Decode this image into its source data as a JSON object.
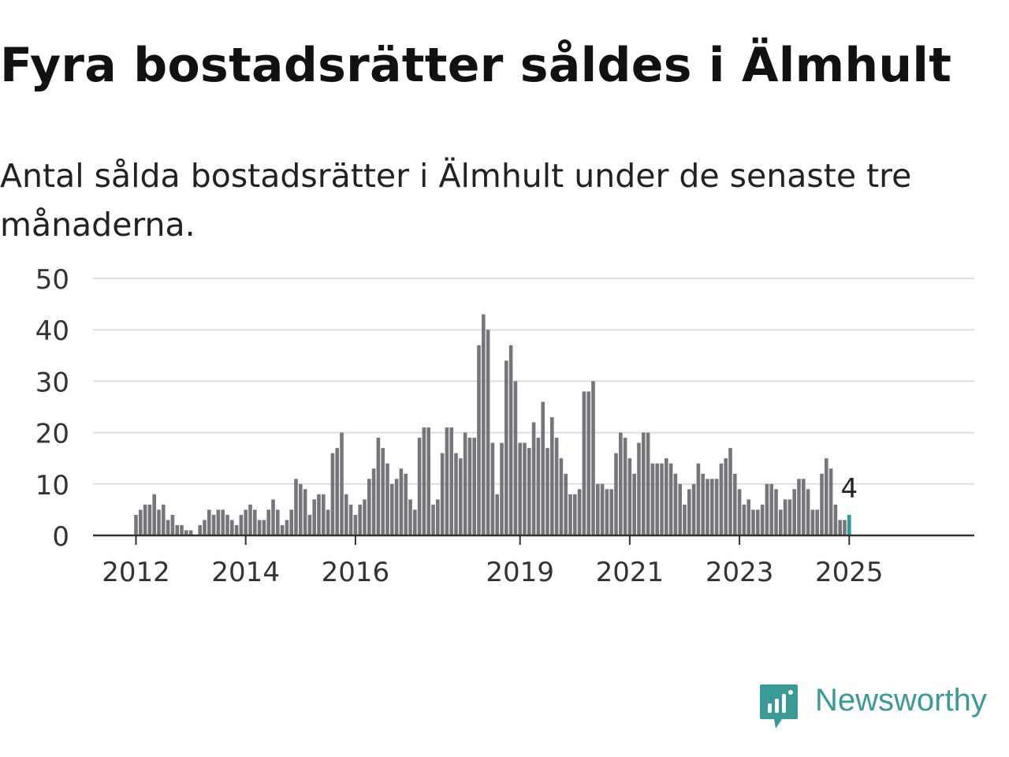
{
  "title": "Fyra bostadsrätter såldes i Älmhult",
  "subtitle": "Antal sålda bostadsrätter i Älmhult under de senaste tre månaderna.",
  "brand": {
    "name": "Newsworthy",
    "icon": "newsworthy-logo-icon",
    "color": "#3a9a96"
  },
  "colors": {
    "bar": "#76757c",
    "highlight": "#2a9d98",
    "grid": "#dddddd",
    "axis": "#333333"
  },
  "chart_data": {
    "type": "bar",
    "title": "",
    "xlabel": "",
    "ylabel": "",
    "ylim": [
      0,
      50
    ],
    "yticks": [
      0,
      10,
      20,
      30,
      40,
      50
    ],
    "xticks": [
      "2012",
      "2014",
      "2016",
      "2019",
      "2021",
      "2023",
      "2025"
    ],
    "grid": true,
    "x_start": "2012-01",
    "x_end": "2025-01",
    "values": [
      4,
      5,
      6,
      6,
      8,
      5,
      6,
      3,
      4,
      2,
      2,
      1,
      1,
      0,
      2,
      3,
      5,
      4,
      5,
      5,
      4,
      3,
      2,
      4,
      5,
      6,
      5,
      3,
      3,
      5,
      7,
      5,
      2,
      3,
      5,
      11,
      10,
      9,
      4,
      7,
      8,
      8,
      5,
      16,
      17,
      20,
      8,
      6,
      4,
      6,
      7,
      11,
      13,
      19,
      17,
      14,
      10,
      11,
      13,
      12,
      7,
      5,
      19,
      21,
      21,
      6,
      7,
      16,
      21,
      21,
      16,
      15,
      20,
      19,
      19,
      37,
      43,
      40,
      18,
      8,
      18,
      34,
      37,
      30,
      18,
      18,
      17,
      22,
      19,
      26,
      17,
      23,
      19,
      15,
      12,
      8,
      8,
      9,
      28,
      28,
      30,
      10,
      10,
      9,
      9,
      16,
      20,
      19,
      15,
      12,
      18,
      20,
      20,
      14,
      14,
      14,
      15,
      14,
      12,
      10,
      6,
      9,
      10,
      14,
      12,
      11,
      11,
      11,
      14,
      15,
      17,
      12,
      9,
      6,
      7,
      5,
      5,
      6,
      10,
      10,
      9,
      5,
      7,
      7,
      9,
      11,
      11,
      9,
      5,
      5,
      12,
      15,
      13,
      6,
      3,
      3,
      4
    ],
    "highlight_last": true,
    "highlight_label": "4"
  }
}
